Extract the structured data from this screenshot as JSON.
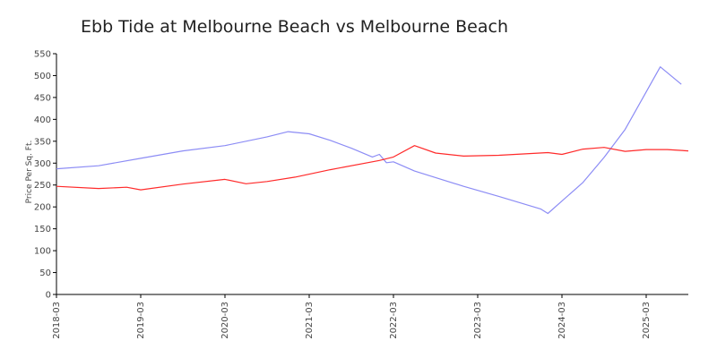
{
  "chart_data": {
    "type": "line",
    "title": "Ebb Tide at Melbourne Beach vs Melbourne Beach",
    "xlabel": "",
    "ylabel": "Price Per Sq. Ft.",
    "ylim": [
      0,
      550
    ],
    "yticks": [
      0,
      50,
      100,
      150,
      200,
      250,
      300,
      350,
      400,
      450,
      500,
      550
    ],
    "xlim": [
      "2018-03",
      "2025-09"
    ],
    "xticks": [
      "2018-03",
      "2019-03",
      "2020-03",
      "2021-03",
      "2022-03",
      "2023-03",
      "2024-03",
      "2025-03"
    ],
    "grid": false,
    "legend": "none",
    "series": [
      {
        "color": "#8c8cf5",
        "points": [
          [
            "2018-03",
            287
          ],
          [
            "2018-09",
            294
          ],
          [
            "2019-03",
            311
          ],
          [
            "2019-09",
            328
          ],
          [
            "2020-03",
            340
          ],
          [
            "2020-09",
            360
          ],
          [
            "2020-12",
            372
          ],
          [
            "2021-03",
            367
          ],
          [
            "2021-06",
            352
          ],
          [
            "2021-09",
            334
          ],
          [
            "2021-12",
            314
          ],
          [
            "2022-01",
            320
          ],
          [
            "2022-02",
            301
          ],
          [
            "2022-03",
            303
          ],
          [
            "2022-06",
            282
          ],
          [
            "2022-09",
            267
          ],
          [
            "2023-01",
            247
          ],
          [
            "2023-06",
            224
          ],
          [
            "2023-12",
            195
          ],
          [
            "2024-01",
            185
          ],
          [
            "2024-06",
            256
          ],
          [
            "2024-09",
            313
          ],
          [
            "2024-12",
            377
          ],
          [
            "2025-05",
            520
          ],
          [
            "2025-08",
            480
          ]
        ]
      },
      {
        "color": "#ff2a2a",
        "points": [
          [
            "2018-03",
            247
          ],
          [
            "2018-09",
            242
          ],
          [
            "2019-01",
            245
          ],
          [
            "2019-03",
            239
          ],
          [
            "2019-09",
            252
          ],
          [
            "2020-03",
            263
          ],
          [
            "2020-06",
            253
          ],
          [
            "2020-09",
            258
          ],
          [
            "2021-01",
            268
          ],
          [
            "2021-06",
            285
          ],
          [
            "2022-01",
            306
          ],
          [
            "2022-03",
            314
          ],
          [
            "2022-06",
            340
          ],
          [
            "2022-09",
            323
          ],
          [
            "2023-01",
            316
          ],
          [
            "2023-06",
            318
          ],
          [
            "2024-01",
            324
          ],
          [
            "2024-03",
            320
          ],
          [
            "2024-06",
            332
          ],
          [
            "2024-09",
            336
          ],
          [
            "2024-12",
            327
          ],
          [
            "2025-03",
            331
          ],
          [
            "2025-06",
            331
          ],
          [
            "2025-09",
            328
          ]
        ]
      }
    ]
  }
}
